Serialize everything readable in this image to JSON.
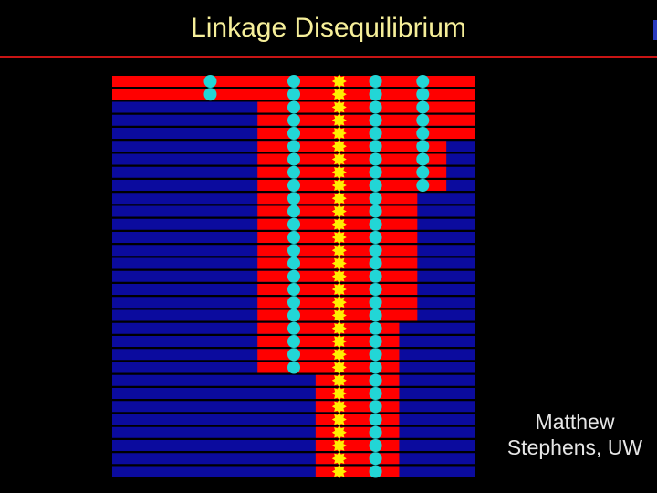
{
  "slide": {
    "title": "Linkage Disequilibrium",
    "credit_line1": "Matthew",
    "credit_line2": "Stephens, UW"
  },
  "colors": {
    "background": "#000000",
    "title": "#f6ef9a",
    "rule": "#c81414",
    "ancestral_segment": "#ff0000",
    "other_segment": "#0b0b9e",
    "marker_cyan": "#22d6d6",
    "marker_yellow": "#ffee00"
  },
  "diagram": {
    "description_free": true,
    "haplotype_count": 31,
    "haplotypes_red_interval": [
      [
        0.0,
        1.0
      ],
      [
        0.0,
        1.0
      ],
      [
        0.4,
        1.0
      ],
      [
        0.4,
        1.0
      ],
      [
        0.4,
        1.0
      ],
      [
        0.4,
        0.92
      ],
      [
        0.4,
        0.92
      ],
      [
        0.4,
        0.92
      ],
      [
        0.4,
        0.92
      ],
      [
        0.4,
        0.84
      ],
      [
        0.4,
        0.84
      ],
      [
        0.4,
        0.84
      ],
      [
        0.4,
        0.84
      ],
      [
        0.4,
        0.84
      ],
      [
        0.4,
        0.84
      ],
      [
        0.4,
        0.84
      ],
      [
        0.4,
        0.84
      ],
      [
        0.4,
        0.84
      ],
      [
        0.4,
        0.84
      ],
      [
        0.4,
        0.79
      ],
      [
        0.4,
        0.79
      ],
      [
        0.4,
        0.79
      ],
      [
        0.4,
        0.79
      ],
      [
        0.56,
        0.79
      ],
      [
        0.56,
        0.79
      ],
      [
        0.56,
        0.79
      ],
      [
        0.56,
        0.79
      ],
      [
        0.56,
        0.79
      ],
      [
        0.56,
        0.79
      ],
      [
        0.56,
        0.79
      ],
      [
        0.56,
        0.79
      ]
    ],
    "markers": [
      {
        "kind": "cyan",
        "position": 0.27
      },
      {
        "kind": "cyan",
        "position": 0.5
      },
      {
        "kind": "yellow",
        "position": 0.625
      },
      {
        "kind": "cyan",
        "position": 0.725
      },
      {
        "kind": "cyan",
        "position": 0.855
      }
    ]
  }
}
